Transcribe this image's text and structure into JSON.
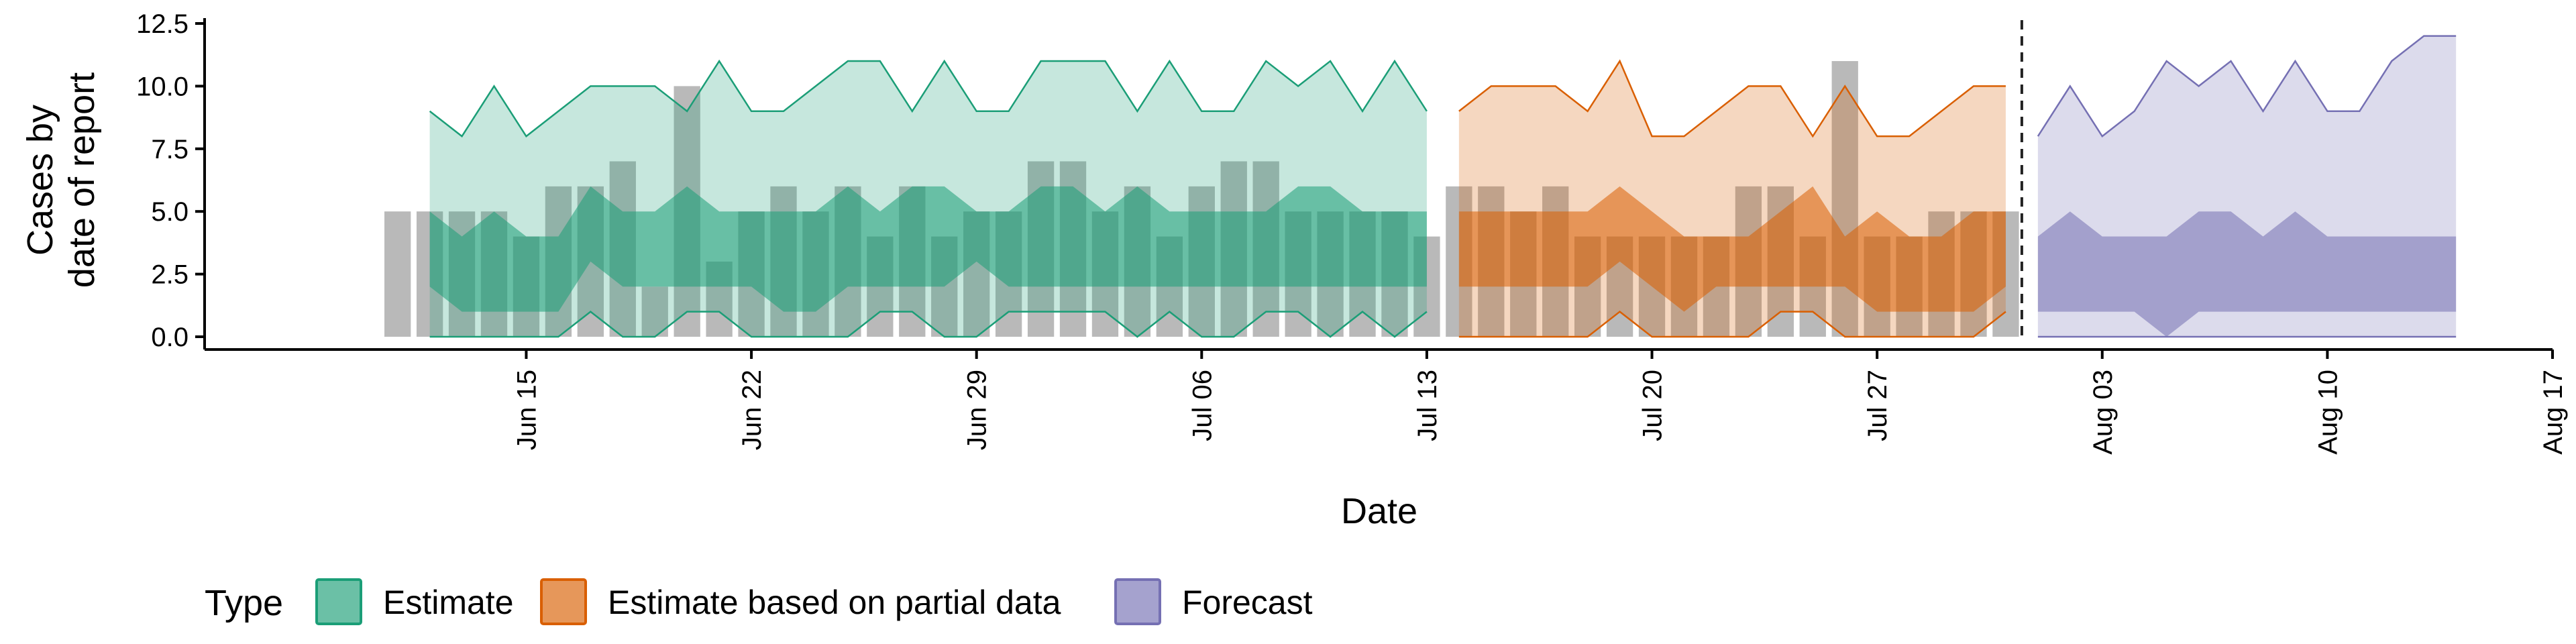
{
  "chart_data": {
    "type": "area",
    "title": "",
    "xlabel": "Date",
    "ylabel_lines": [
      "Cases by",
      "date of report"
    ],
    "ylim": [
      0,
      12.5
    ],
    "yticks": [
      0,
      2.5,
      5,
      7.5,
      10,
      12.5
    ],
    "ytick_labels": [
      "0.0",
      "2.5",
      "5.0",
      "7.5",
      "10.0",
      "12.5"
    ],
    "xlim": [
      "2020-06-05",
      "2020-08-17"
    ],
    "xticks": [
      "2020-06-15",
      "2020-06-22",
      "2020-06-29",
      "2020-07-06",
      "2020-07-13",
      "2020-07-20",
      "2020-07-27",
      "2020-08-03",
      "2020-08-10",
      "2020-08-17"
    ],
    "xtick_labels": [
      "Jun 15",
      "Jun 22",
      "Jun 29",
      "Jul 06",
      "Jul 13",
      "Jul 20",
      "Jul 27",
      "Aug 03",
      "Aug 10",
      "Aug 17"
    ],
    "vline_date": "2020-07-31",
    "observed": {
      "dates": [
        "2020-06-11",
        "2020-06-12",
        "2020-06-13",
        "2020-06-14",
        "2020-06-15",
        "2020-06-16",
        "2020-06-17",
        "2020-06-18",
        "2020-06-19",
        "2020-06-20",
        "2020-06-21",
        "2020-06-22",
        "2020-06-23",
        "2020-06-24",
        "2020-06-25",
        "2020-06-26",
        "2020-06-27",
        "2020-06-28",
        "2020-06-29",
        "2020-06-30",
        "2020-07-01",
        "2020-07-02",
        "2020-07-03",
        "2020-07-04",
        "2020-07-05",
        "2020-07-06",
        "2020-07-07",
        "2020-07-08",
        "2020-07-09",
        "2020-07-10",
        "2020-07-11",
        "2020-07-12",
        "2020-07-13",
        "2020-07-14",
        "2020-07-15",
        "2020-07-16",
        "2020-07-17",
        "2020-07-18",
        "2020-07-19",
        "2020-07-20",
        "2020-07-21",
        "2020-07-22",
        "2020-07-23",
        "2020-07-24",
        "2020-07-25",
        "2020-07-26",
        "2020-07-27",
        "2020-07-28",
        "2020-07-29",
        "2020-07-30",
        "2020-07-31"
      ],
      "values": [
        5,
        5,
        5,
        5,
        4,
        6,
        6,
        7,
        2,
        10,
        3,
        5,
        6,
        5,
        6,
        4,
        6,
        4,
        5,
        5,
        7,
        7,
        5,
        6,
        4,
        6,
        7,
        7,
        5,
        5,
        5,
        5,
        4,
        6,
        6,
        5,
        6,
        4,
        4,
        4,
        4,
        4,
        6,
        6,
        4,
        11,
        4,
        4,
        5,
        5,
        5
      ]
    },
    "series": [
      {
        "name": "Estimate",
        "color": "#1b9e77",
        "dates": [
          "2020-06-12",
          "2020-06-13",
          "2020-06-14",
          "2020-06-15",
          "2020-06-16",
          "2020-06-17",
          "2020-06-18",
          "2020-06-19",
          "2020-06-20",
          "2020-06-21",
          "2020-06-22",
          "2020-06-23",
          "2020-06-24",
          "2020-06-25",
          "2020-06-26",
          "2020-06-27",
          "2020-06-28",
          "2020-06-29",
          "2020-06-30",
          "2020-07-01",
          "2020-07-02",
          "2020-07-03",
          "2020-07-04",
          "2020-07-05",
          "2020-07-06",
          "2020-07-07",
          "2020-07-08",
          "2020-07-09",
          "2020-07-10",
          "2020-07-11",
          "2020-07-12",
          "2020-07-13"
        ],
        "lower90": [
          0,
          0,
          0,
          0,
          0,
          1,
          0,
          0,
          1,
          1,
          0,
          0,
          0,
          0,
          1,
          1,
          0,
          0,
          1,
          1,
          1,
          1,
          0,
          1,
          0,
          0,
          1,
          1,
          0,
          1,
          0,
          1
        ],
        "lower50": [
          2,
          1,
          1,
          1,
          1,
          3,
          2,
          2,
          2,
          2,
          2,
          1,
          1,
          2,
          2,
          2,
          2,
          3,
          2,
          2,
          2,
          2,
          2,
          2,
          2,
          2,
          2,
          2,
          2,
          2,
          2,
          2
        ],
        "upper50": [
          5,
          4,
          5,
          4,
          4,
          6,
          5,
          5,
          6,
          5,
          5,
          5,
          5,
          6,
          5,
          6,
          6,
          5,
          5,
          6,
          6,
          5,
          6,
          5,
          5,
          5,
          5,
          6,
          6,
          5,
          5,
          5
        ],
        "upper90": [
          9,
          8,
          10,
          8,
          9,
          10,
          10,
          10,
          9,
          11,
          9,
          9,
          10,
          11,
          11,
          9,
          11,
          9,
          9,
          11,
          11,
          11,
          9,
          11,
          9,
          9,
          11,
          10,
          11,
          9,
          11,
          9
        ]
      },
      {
        "name": "Estimate based on partial data",
        "color": "#d95f02",
        "dates": [
          "2020-07-14",
          "2020-07-15",
          "2020-07-16",
          "2020-07-17",
          "2020-07-18",
          "2020-07-19",
          "2020-07-20",
          "2020-07-21",
          "2020-07-22",
          "2020-07-23",
          "2020-07-24",
          "2020-07-25",
          "2020-07-26",
          "2020-07-27",
          "2020-07-28",
          "2020-07-29",
          "2020-07-30",
          "2020-07-31"
        ],
        "lower90": [
          0,
          0,
          0,
          0,
          0,
          1,
          0,
          0,
          0,
          0,
          1,
          1,
          0,
          0,
          0,
          0,
          0,
          1
        ],
        "lower50": [
          2,
          2,
          2,
          2,
          2,
          3,
          2,
          1,
          2,
          2,
          2,
          2,
          2,
          1,
          1,
          1,
          1,
          2
        ],
        "upper50": [
          5,
          5,
          5,
          5,
          5,
          6,
          5,
          4,
          4,
          4,
          5,
          6,
          4,
          5,
          4,
          4,
          5,
          5
        ],
        "upper90": [
          9,
          10,
          10,
          10,
          9,
          11,
          8,
          8,
          9,
          10,
          10,
          8,
          10,
          8,
          8,
          9,
          10,
          10
        ]
      },
      {
        "name": "Forecast",
        "color": "#7570b3",
        "dates": [
          "2020-08-01",
          "2020-08-02",
          "2020-08-03",
          "2020-08-04",
          "2020-08-05",
          "2020-08-06",
          "2020-08-07",
          "2020-08-08",
          "2020-08-09",
          "2020-08-10",
          "2020-08-11",
          "2020-08-12",
          "2020-08-13",
          "2020-08-14"
        ],
        "lower90": [
          0,
          0,
          0,
          0,
          0,
          0,
          0,
          0,
          0,
          0,
          0,
          0,
          0,
          0
        ],
        "lower50": [
          1,
          1,
          1,
          1,
          0,
          1,
          1,
          1,
          1,
          1,
          1,
          1,
          1,
          1
        ],
        "upper50": [
          4,
          5,
          4,
          4,
          4,
          5,
          5,
          4,
          5,
          4,
          4,
          4,
          4,
          4
        ],
        "upper90": [
          8,
          10,
          8,
          9,
          11,
          10,
          11,
          9,
          11,
          9,
          9,
          11,
          12,
          12
        ]
      }
    ],
    "legend": {
      "title": "Type",
      "position": "bottom-left",
      "items": [
        {
          "label": "Estimate",
          "color": "#1b9e77"
        },
        {
          "label": "Estimate based on partial data",
          "color": "#d95f02"
        },
        {
          "label": "Forecast",
          "color": "#7570b3"
        }
      ]
    }
  }
}
